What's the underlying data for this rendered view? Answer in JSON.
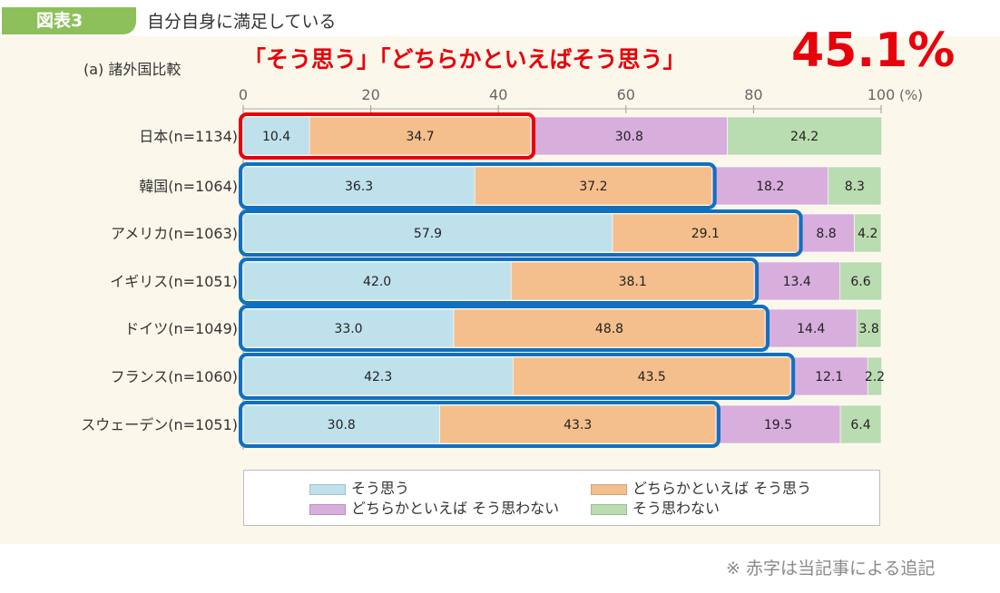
{
  "header": {
    "badge": "図表3",
    "title": "自分自身に満足している",
    "subtitle": "(a) 諸外国比較",
    "red_note": "「そう思う」「どちらかといえばそう思う」",
    "red_percent": "45.1%",
    "footnote": "※ 赤字は当記事による追記"
  },
  "colors": {
    "soo_omou": "#bfe1ec",
    "dochira_soo": "#f4bf8c",
    "dochira_not": "#d8aedd",
    "not": "#b9dcb0",
    "red": "#e8000b",
    "blue": "#1070c0"
  },
  "chart_data": {
    "type": "bar",
    "orientation": "horizontal",
    "stacked": true,
    "xlim": [
      0,
      100
    ],
    "x_ticks": [
      "0",
      "20",
      "40",
      "60",
      "80",
      "100"
    ],
    "x_unit": "(%)",
    "categories": [
      "日本(n=1134)",
      "韓国(n=1064)",
      "アメリカ(n=1063)",
      "イギリス(n=1051)",
      "ドイツ(n=1049)",
      "フランス(n=1060)",
      "スウェーデン(n=1051)"
    ],
    "series": [
      {
        "name": "そう思う",
        "values": [
          10.4,
          36.3,
          57.9,
          42.0,
          33.0,
          42.3,
          30.8
        ]
      },
      {
        "name": "どちらかといえば そう思う",
        "values": [
          34.7,
          37.2,
          29.1,
          38.1,
          48.8,
          43.5,
          43.3
        ]
      },
      {
        "name": "どちらかといえば そう思わない",
        "values": [
          30.8,
          18.2,
          8.8,
          13.4,
          14.4,
          12.1,
          19.5
        ]
      },
      {
        "name": "そう思わない",
        "values": [
          24.2,
          8.3,
          4.2,
          6.6,
          3.8,
          2.2,
          6.4
        ]
      }
    ],
    "labels": [
      [
        "10.4",
        "34.7",
        "30.8",
        "24.2"
      ],
      [
        "36.3",
        "37.2",
        "18.2",
        "8.3"
      ],
      [
        "57.9",
        "29.1",
        "8.8",
        "4.2"
      ],
      [
        "42.0",
        "38.1",
        "13.4",
        "6.6"
      ],
      [
        "33.0",
        "48.8",
        "14.4",
        "3.8"
      ],
      [
        "42.3",
        "43.5",
        "12.1",
        "2.2"
      ],
      [
        "30.8",
        "43.3",
        "19.5",
        "6.4"
      ]
    ],
    "highlight": {
      "red_rows": [
        0
      ],
      "blue_rows": [
        1,
        2,
        3,
        4,
        5,
        6
      ],
      "covers_series": [
        "そう思う",
        "どちらかといえば そう思う"
      ]
    }
  }
}
